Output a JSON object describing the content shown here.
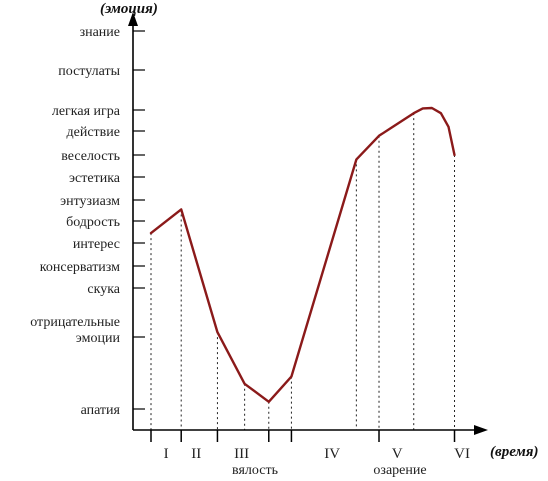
{
  "chart_data": {
    "type": "line",
    "ylabel": "(эмоция)",
    "xlabel": "(время)",
    "y_levels": [
      {
        "key": "apathy",
        "label": "апатия"
      },
      {
        "key": "negative",
        "label": [
          "отрицательные",
          "эмоции"
        ]
      },
      {
        "key": "boredom",
        "label": "скука"
      },
      {
        "key": "conservatism",
        "label": "консерватизм"
      },
      {
        "key": "interest",
        "label": "интерес"
      },
      {
        "key": "vigor",
        "label": "бодрость"
      },
      {
        "key": "enthusiasm",
        "label": "энтузиазм"
      },
      {
        "key": "aesthetics",
        "label": "эстетика"
      },
      {
        "key": "cheer",
        "label": "веселость"
      },
      {
        "key": "action",
        "label": "действие"
      },
      {
        "key": "easy_game",
        "label": "легкая игра"
      },
      {
        "key": "postulates",
        "label": "постулаты"
      },
      {
        "key": "knowledge",
        "label": "знание"
      }
    ],
    "phases": [
      "I",
      "II",
      "III",
      "IV",
      "V",
      "VI"
    ],
    "annotations": [
      {
        "text": "вялость",
        "near_phase": "III"
      },
      {
        "text": "озарение",
        "near_phase": "V"
      }
    ],
    "series": [
      {
        "color": "#8b1a1a",
        "points": [
          {
            "t": 0.0,
            "level": 4.45
          },
          {
            "t": 1.0,
            "level": 5.55
          },
          {
            "t": 2.2,
            "level": 1.1
          },
          {
            "t": 3.1,
            "level": 0.35
          },
          {
            "t": 3.9,
            "level": 0.1
          },
          {
            "t": 4.65,
            "level": 0.45
          },
          {
            "t": 6.8,
            "level": 7.8
          },
          {
            "t": 7.55,
            "level": 8.8
          },
          {
            "t": 8.7,
            "level": 9.85
          },
          {
            "t": 9.0,
            "level": 10.04
          },
          {
            "t": 9.3,
            "level": 10.05
          },
          {
            "t": 9.6,
            "level": 9.85
          },
          {
            "t": 9.85,
            "level": 9.2
          },
          {
            "t": 10.05,
            "level": 8.0
          }
        ]
      }
    ],
    "dotted_verticals_at": [
      0.0,
      1.0,
      2.2,
      3.1,
      3.9,
      4.65,
      6.8,
      7.55,
      8.7,
      10.05
    ],
    "phase_boundaries": [
      0.0,
      1.0,
      2.2,
      3.9,
      4.65,
      7.55,
      10.05
    ],
    "phase_label_positions": [
      0.5,
      1.5,
      3.0,
      6.0,
      8.15,
      10.3
    ]
  }
}
